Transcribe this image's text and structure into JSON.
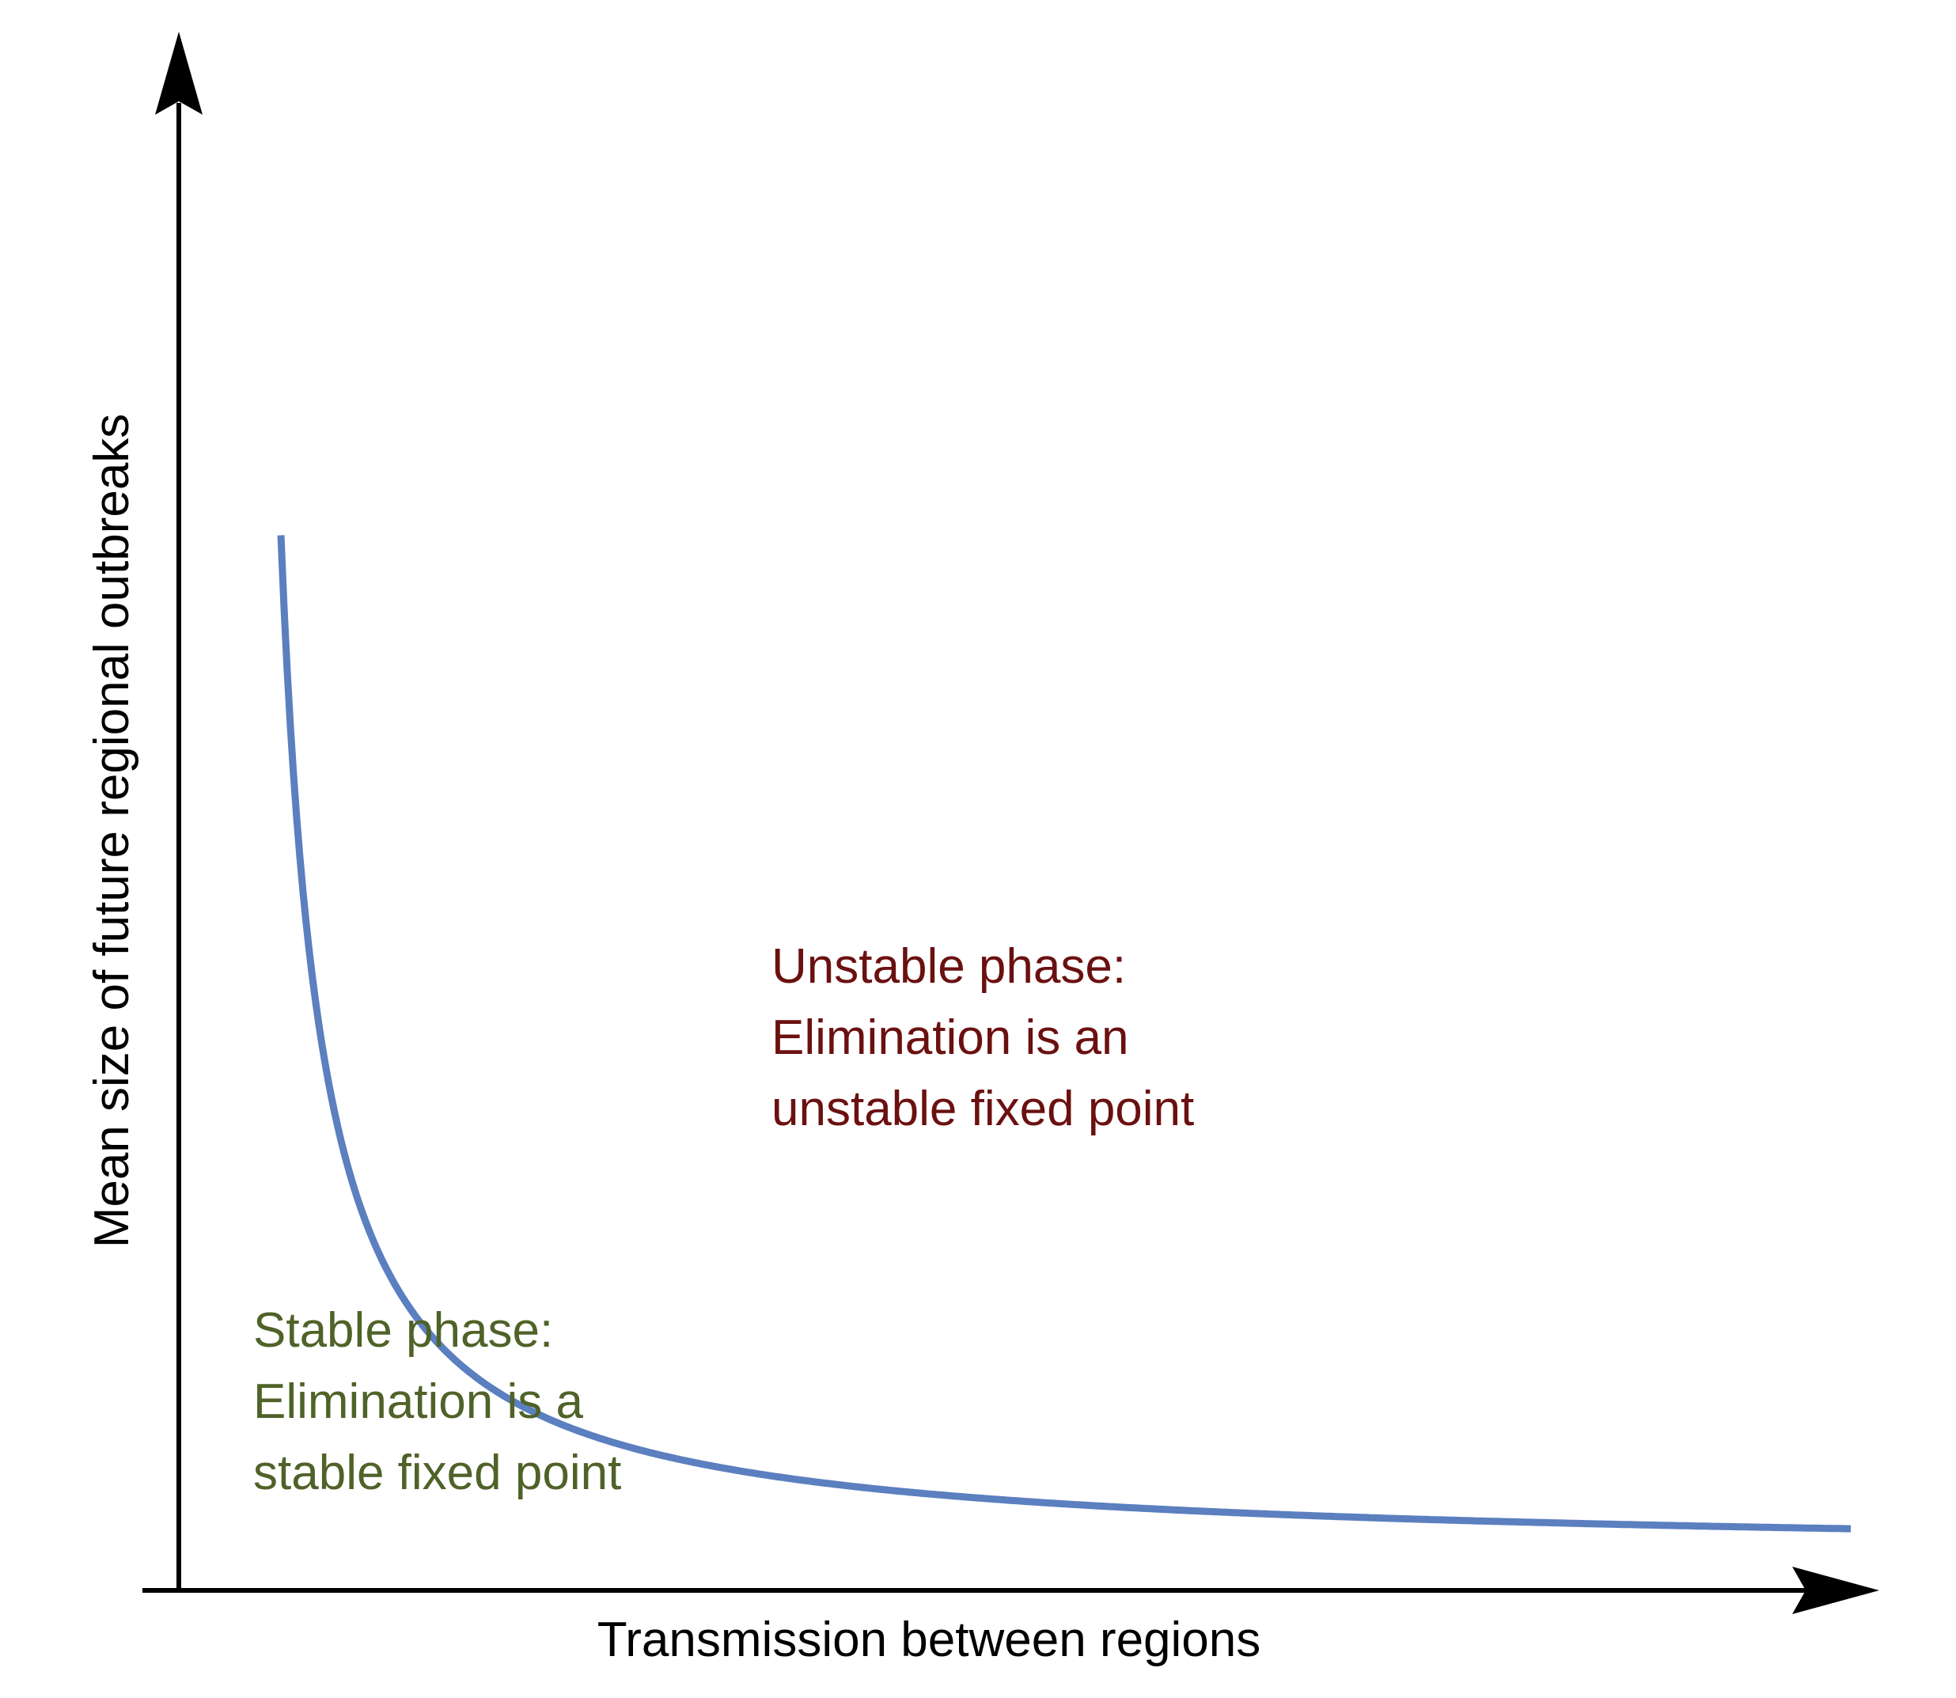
{
  "axes": {
    "x_label": "Transmission between regions",
    "y_label": "Mean size of future regional outbreaks"
  },
  "regions": {
    "unstable": {
      "lines": [
        "Unstable phase:",
        "Elimination is an",
        "unstable fixed point"
      ],
      "color": "#6b1010"
    },
    "stable": {
      "lines": [
        "Stable phase:",
        "Elimination is a",
        "stable fixed point"
      ],
      "color": "#4f6228"
    }
  },
  "curve": {
    "color": "#5b7fbf",
    "shape": "decreasing hyperbolic boundary"
  }
}
